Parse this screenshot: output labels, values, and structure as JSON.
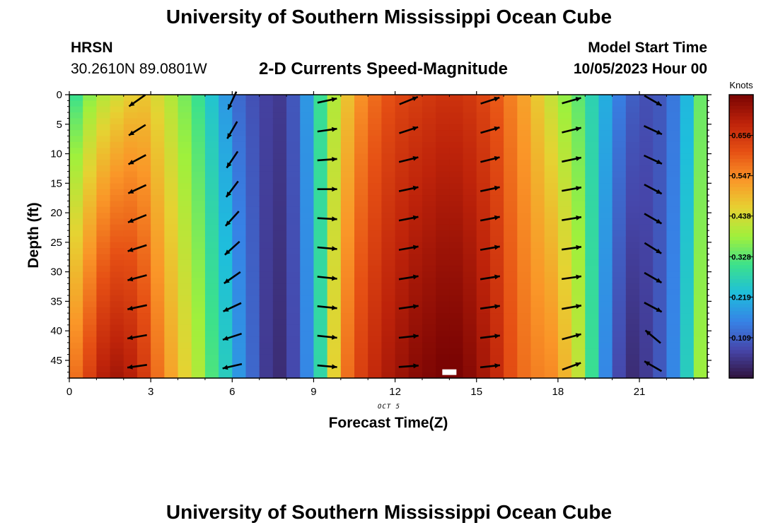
{
  "header": {
    "title": "University of Southern Mississippi Ocean Cube",
    "station": "HRSN",
    "coords": "30.2610N  89.0801W",
    "chart_title": "2-D Currents Speed-Magnitude",
    "model_label": "Model Start Time",
    "model_time": "10/05/2023 Hour 00"
  },
  "footer": {
    "title": "University of Southern Mississippi Ocean Cube"
  },
  "chart_data": {
    "type": "heatmap",
    "title": "2-D Currents Speed-Magnitude",
    "xlabel": "Forecast Time(Z)",
    "ylabel": "Depth (ft)",
    "date_label": "OCT 5",
    "xlim": [
      0,
      23.5
    ],
    "ylim": [
      0,
      48
    ],
    "x_ticks": [
      0,
      3,
      6,
      9,
      12,
      15,
      18,
      21
    ],
    "y_ticks": [
      0,
      5,
      10,
      15,
      20,
      25,
      30,
      35,
      40,
      45
    ],
    "colorbar": {
      "label": "Knots",
      "ticks": [
        0.109,
        0.219,
        0.328,
        0.438,
        0.547,
        0.656
      ],
      "range": [
        0.0,
        0.766
      ]
    },
    "speed_profile": [
      {
        "hour": 0.25,
        "top": 0.3,
        "bottom": 0.58
      },
      {
        "hour": 0.75,
        "top": 0.36,
        "bottom": 0.64
      },
      {
        "hour": 1.25,
        "top": 0.4,
        "bottom": 0.7
      },
      {
        "hour": 1.75,
        "top": 0.43,
        "bottom": 0.72
      },
      {
        "hour": 2.25,
        "top": 0.46,
        "bottom": 0.7
      },
      {
        "hour": 2.75,
        "top": 0.47,
        "bottom": 0.65
      },
      {
        "hour": 3.25,
        "top": 0.44,
        "bottom": 0.58
      },
      {
        "hour": 3.75,
        "top": 0.4,
        "bottom": 0.52
      },
      {
        "hour": 4.25,
        "top": 0.35,
        "bottom": 0.46
      },
      {
        "hour": 4.75,
        "top": 0.3,
        "bottom": 0.4
      },
      {
        "hour": 5.25,
        "top": 0.24,
        "bottom": 0.32
      },
      {
        "hour": 5.75,
        "top": 0.18,
        "bottom": 0.26
      },
      {
        "hour": 6.25,
        "top": 0.12,
        "bottom": 0.18
      },
      {
        "hour": 6.75,
        "top": 0.09,
        "bottom": 0.12
      },
      {
        "hour": 7.25,
        "top": 0.07,
        "bottom": 0.06
      },
      {
        "hour": 7.75,
        "top": 0.06,
        "bottom": 0.04
      },
      {
        "hour": 8.25,
        "top": 0.1,
        "bottom": 0.08
      },
      {
        "hour": 8.75,
        "top": 0.18,
        "bottom": 0.16
      },
      {
        "hour": 9.25,
        "top": 0.3,
        "bottom": 0.28
      },
      {
        "hour": 9.75,
        "top": 0.4,
        "bottom": 0.46
      },
      {
        "hour": 10.25,
        "top": 0.48,
        "bottom": 0.58
      },
      {
        "hour": 10.75,
        "top": 0.54,
        "bottom": 0.64
      },
      {
        "hour": 11.25,
        "top": 0.58,
        "bottom": 0.68
      },
      {
        "hour": 11.75,
        "top": 0.61,
        "bottom": 0.71
      },
      {
        "hour": 12.25,
        "top": 0.63,
        "bottom": 0.73
      },
      {
        "hour": 12.75,
        "top": 0.64,
        "bottom": 0.75
      },
      {
        "hour": 13.25,
        "top": 0.65,
        "bottom": 0.76
      },
      {
        "hour": 13.75,
        "top": 0.66,
        "bottom": 0.77
      },
      {
        "hour": 14.25,
        "top": 0.66,
        "bottom": 0.77
      },
      {
        "hour": 14.75,
        "top": 0.65,
        "bottom": 0.75
      },
      {
        "hour": 15.25,
        "top": 0.63,
        "bottom": 0.72
      },
      {
        "hour": 15.75,
        "top": 0.6,
        "bottom": 0.68
      },
      {
        "hour": 16.25,
        "top": 0.56,
        "bottom": 0.62
      },
      {
        "hour": 16.75,
        "top": 0.52,
        "bottom": 0.58
      },
      {
        "hour": 17.25,
        "top": 0.47,
        "bottom": 0.56
      },
      {
        "hour": 17.75,
        "top": 0.42,
        "bottom": 0.55
      },
      {
        "hour": 18.25,
        "top": 0.37,
        "bottom": 0.5
      },
      {
        "hour": 18.75,
        "top": 0.33,
        "bottom": 0.42
      },
      {
        "hour": 19.25,
        "top": 0.27,
        "bottom": 0.3
      },
      {
        "hour": 19.75,
        "top": 0.21,
        "bottom": 0.16
      },
      {
        "hour": 20.25,
        "top": 0.15,
        "bottom": 0.08
      },
      {
        "hour": 20.75,
        "top": 0.11,
        "bottom": 0.04
      },
      {
        "hour": 21.25,
        "top": 0.09,
        "bottom": 0.06
      },
      {
        "hour": 21.75,
        "top": 0.1,
        "bottom": 0.1
      },
      {
        "hour": 22.25,
        "top": 0.14,
        "bottom": 0.16
      },
      {
        "hour": 22.75,
        "top": 0.22,
        "bottom": 0.26
      },
      {
        "hour": 23.25,
        "top": 0.34,
        "bottom": 0.38
      }
    ],
    "vector_hours": [
      2.5,
      6,
      9.5,
      12.5,
      15.5,
      18.5,
      21.5
    ],
    "vector_depths": [
      1,
      6,
      11,
      16,
      21,
      26,
      31,
      36,
      41,
      46
    ],
    "vector_angles_deg": [
      [
        215,
        212,
        208,
        205,
        202,
        198,
        195,
        192,
        190,
        188
      ],
      [
        245,
        240,
        236,
        233,
        228,
        222,
        215,
        205,
        198,
        193
      ],
      [
        12,
        8,
        4,
        0,
        -3,
        -5,
        -6,
        -6,
        -6,
        -5
      ],
      [
        22,
        18,
        14,
        12,
        11,
        10,
        9,
        8,
        6,
        4
      ],
      [
        18,
        16,
        14,
        12,
        11,
        10,
        9,
        8,
        7,
        6
      ],
      [
        16,
        14,
        12,
        10,
        9,
        8,
        8,
        10,
        15,
        20
      ],
      [
        -30,
        -25,
        -25,
        -28,
        -30,
        -32,
        -30,
        -28,
        140,
        150
      ]
    ],
    "scale_marker": {
      "hour": 14,
      "depth": 47
    }
  }
}
